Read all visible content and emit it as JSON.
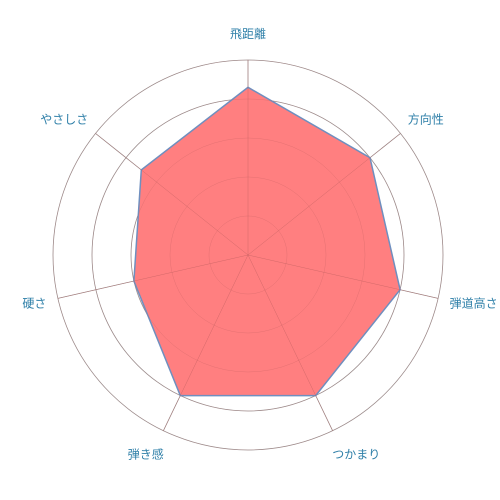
{
  "chart_data": {
    "type": "radar",
    "title": "",
    "categories": [
      "飛距離",
      "方向性",
      "弾道高さ",
      "つかまり",
      "弾き感",
      "硬さ",
      "やさしさ"
    ],
    "series": [
      {
        "values": [
          4.3,
          4.0,
          4.0,
          4.0,
          4.0,
          3.0,
          3.5
        ]
      }
    ],
    "rmax": 5,
    "ring_count": 5,
    "grid": true,
    "legend": "none",
    "colors": {
      "fill": "#ff7f80",
      "stroke": "#6f8fbf",
      "grid": "#9a9a9a",
      "label": "#2e7fa8"
    }
  }
}
